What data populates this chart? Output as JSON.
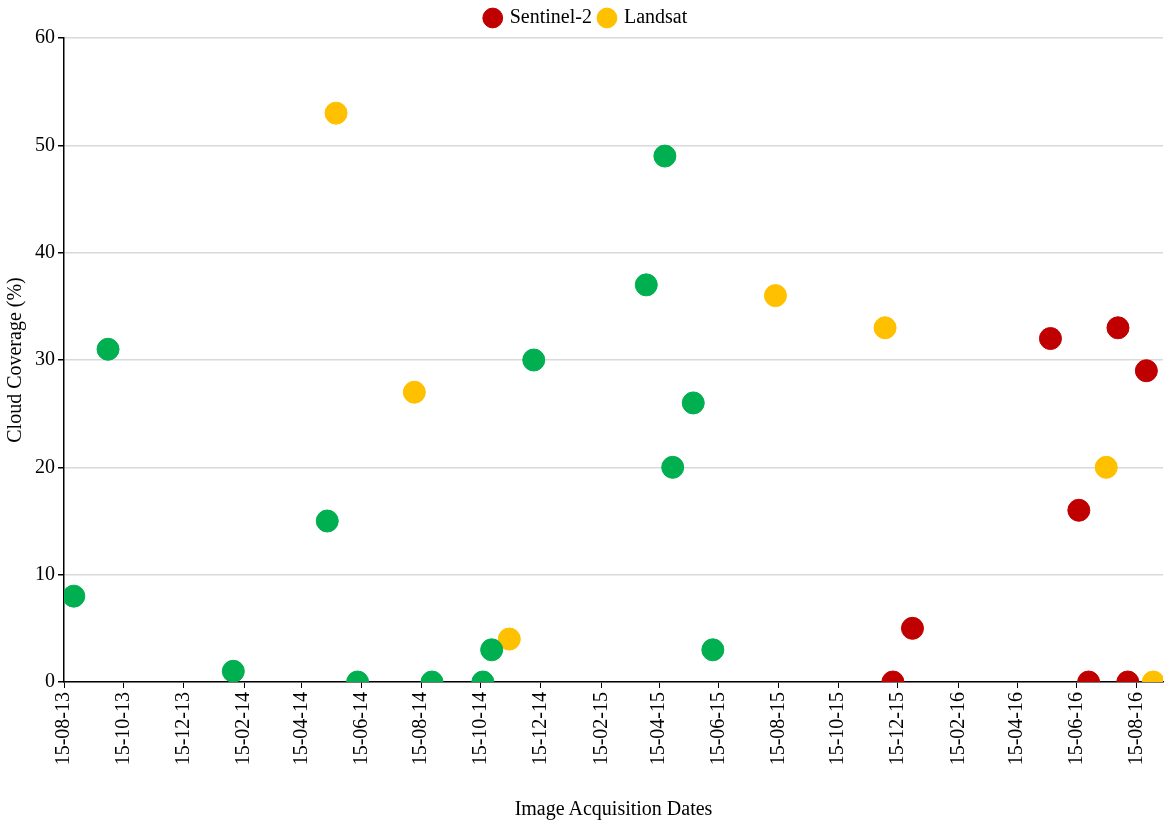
{
  "chart_data": {
    "type": "scatter",
    "xlabel": "Image Acquisition Dates",
    "ylabel": "Cloud Coverage (%)",
    "xlim": [
      "2013-08-15",
      "2016-09-11"
    ],
    "ylim": [
      0,
      60
    ],
    "yticks": [
      0,
      10,
      20,
      30,
      40,
      50,
      60
    ],
    "xticks": [
      {
        "value": "2013-08-15",
        "label": "15-08-13"
      },
      {
        "value": "2013-10-15",
        "label": "15-10-13"
      },
      {
        "value": "2013-12-15",
        "label": "15-12-13"
      },
      {
        "value": "2014-02-15",
        "label": "15-02-14"
      },
      {
        "value": "2014-04-15",
        "label": "15-04-14"
      },
      {
        "value": "2014-06-15",
        "label": "15-06-14"
      },
      {
        "value": "2014-08-15",
        "label": "15-08-14"
      },
      {
        "value": "2014-10-15",
        "label": "15-10-14"
      },
      {
        "value": "2014-12-15",
        "label": "15-12-14"
      },
      {
        "value": "2015-02-15",
        "label": "15-02-15"
      },
      {
        "value": "2015-04-15",
        "label": "15-04-15"
      },
      {
        "value": "2015-06-15",
        "label": "15-06-15"
      },
      {
        "value": "2015-08-15",
        "label": "15-08-15"
      },
      {
        "value": "2015-10-15",
        "label": "15-10-15"
      },
      {
        "value": "2015-12-15",
        "label": "15-12-15"
      },
      {
        "value": "2016-02-15",
        "label": "15-02-16"
      },
      {
        "value": "2016-04-15",
        "label": "15-04-16"
      },
      {
        "value": "2016-06-15",
        "label": "15-06-16"
      },
      {
        "value": "2016-08-15",
        "label": "15-08-16"
      }
    ],
    "grid": "y",
    "legend": "top",
    "marker": "circle",
    "series": [
      {
        "color": "#00b050",
        "x": [
          "2013-08-25",
          "2013-09-29",
          "2014-02-04",
          "2014-05-11",
          "2014-06-11",
          "2014-08-26",
          "2014-10-17",
          "2014-10-26",
          "2014-12-08",
          "2015-04-02",
          "2015-04-21",
          "2015-04-29",
          "2015-05-20",
          "2015-06-09"
        ],
        "values": [
          8,
          31,
          1,
          15,
          0,
          0,
          0,
          3,
          30,
          37,
          49,
          20,
          26,
          3
        ]
      },
      {
        "name": "Sentinel-2",
        "color": "#c00000",
        "x": [
          "2015-12-10",
          "2015-12-30",
          "2016-05-19",
          "2016-06-17",
          "2016-06-27",
          "2016-07-27",
          "2016-08-06",
          "2016-08-25"
        ],
        "values": [
          0,
          5,
          32,
          16,
          0,
          33,
          0,
          29
        ]
      },
      {
        "name": "Landsat",
        "color": "#ffc000",
        "x": [
          "2014-05-20",
          "2014-08-08",
          "2014-11-13",
          "2015-08-12",
          "2015-12-02",
          "2016-07-15",
          "2016-09-01"
        ],
        "values": [
          53,
          27,
          4,
          36,
          33,
          20,
          0
        ]
      }
    ]
  }
}
